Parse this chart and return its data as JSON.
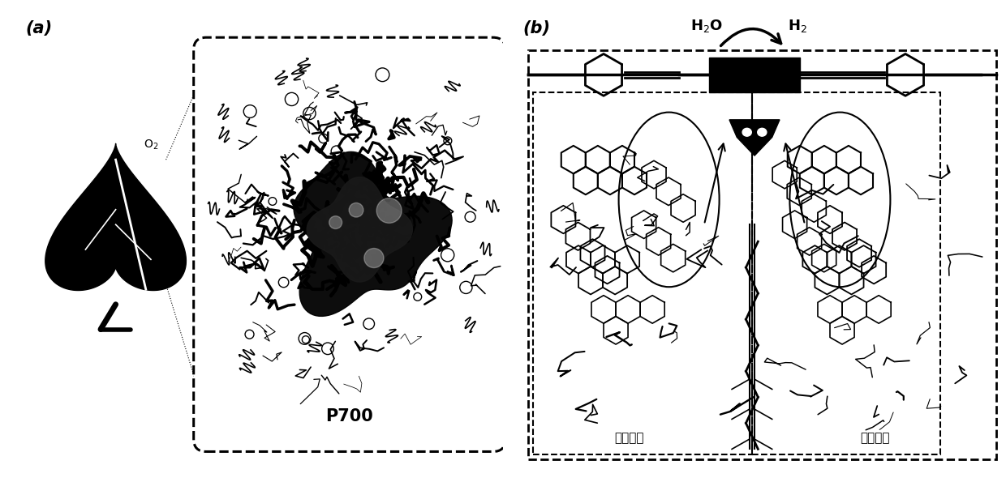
{
  "bg_color": "#ffffff",
  "text_color": "#000000",
  "label_a": "(a)",
  "label_b": "(b)",
  "p700_label": "P700",
  "h2o_label": "H$_2$O",
  "h2_label": "H$_2$",
  "o2_label": "O$_2$",
  "electron_donor_left": "电子供体",
  "electron_donor_right": "电子供体",
  "fig_width": 12.4,
  "fig_height": 6.16
}
